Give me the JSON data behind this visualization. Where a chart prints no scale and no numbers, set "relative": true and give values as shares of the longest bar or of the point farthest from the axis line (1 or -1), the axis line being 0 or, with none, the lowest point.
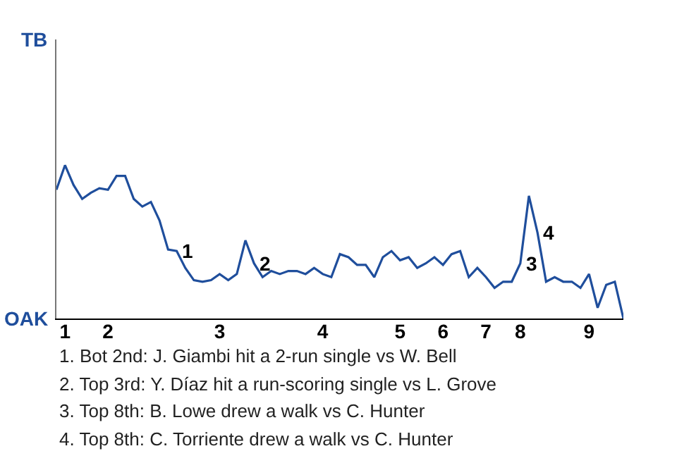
{
  "chart_data": {
    "type": "line",
    "relative": true,
    "categories": [
      null,
      "1",
      null,
      null,
      null,
      null,
      "2",
      null,
      null,
      null,
      null,
      null,
      null,
      null,
      null,
      null,
      null,
      null,
      null,
      "3",
      null,
      null,
      null,
      null,
      null,
      null,
      null,
      null,
      null,
      null,
      null,
      "4",
      null,
      null,
      null,
      null,
      null,
      null,
      null,
      null,
      "5",
      null,
      null,
      null,
      null,
      "6",
      null,
      null,
      null,
      null,
      "7",
      null,
      null,
      null,
      "8",
      null,
      null,
      null,
      null,
      null,
      null,
      null,
      "9",
      null,
      null,
      null,
      null
    ],
    "series": [
      {
        "color": "#1f4e9c",
        "values": [
          0.84,
          1,
          0.87,
          0.78,
          0.82,
          0.85,
          0.84,
          0.93,
          0.93,
          0.78,
          0.73,
          0.76,
          0.64,
          0.45,
          0.44,
          0.33,
          0.25,
          0.24,
          0.25,
          0.29,
          0.25,
          0.29,
          0.51,
          0.36,
          0.27,
          0.31,
          0.29,
          0.31,
          0.31,
          0.29,
          0.33,
          0.29,
          0.27,
          0.42,
          0.4,
          0.35,
          0.35,
          0.27,
          0.4,
          0.44,
          0.38,
          0.4,
          0.33,
          0.36,
          0.4,
          0.35,
          0.42,
          0.44,
          0.27,
          0.33,
          0.27,
          0.2,
          0.24,
          0.24,
          0.36,
          0.8,
          0.56,
          0.24,
          0.27,
          0.24,
          0.24,
          0.2,
          0.29,
          0.07,
          0.22,
          0.24,
          0
        ]
      }
    ],
    "annotations": [
      "1",
      "2",
      "3",
      "4",
      "TB",
      "OAK",
      "1. Bot 2nd: J. Giambi hit a 2-run single vs W. Bell",
      "2. Top 3rd: Y. Díaz hit a run-scoring single vs L. Grove",
      "3. Top 8th: B. Lowe drew a walk vs C. Hunter",
      "4. Top 8th: C. Torriente drew a walk vs C. Hunter"
    ]
  }
}
